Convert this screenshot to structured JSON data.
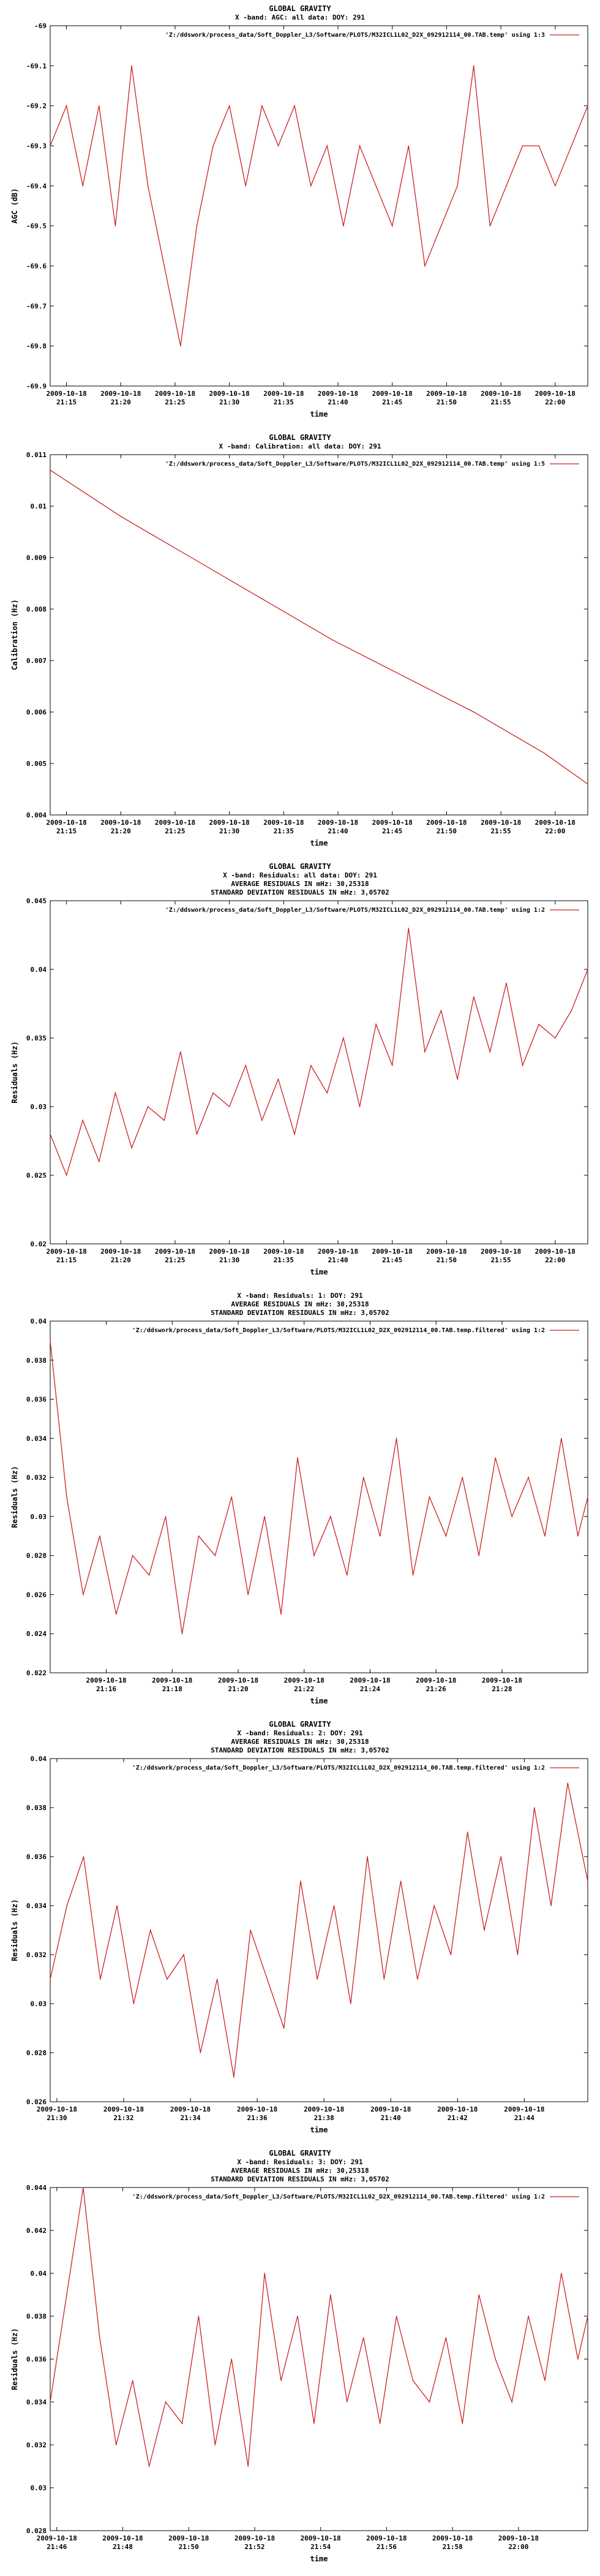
{
  "chart_data": [
    {
      "type": "line",
      "title": "GLOBAL GRAVITY",
      "subtitle_lines": [
        "X -band: AGC: all data: DOY: 291"
      ],
      "legend": "'Z:/ddswork/process_data/Soft_Doppler_L3/Software/PLOTS/M32ICL1L02_D2X_092912114_00.TAB.temp' using 1:3",
      "legend_position": "top-right",
      "xlabel": "time",
      "ylabel": "AGC (dB)",
      "ylim": [
        -69.9,
        -69.0
      ],
      "yticks": [
        "-69",
        "-69.1",
        "-69.2",
        "-69.3",
        "-69.4",
        "-69.5",
        "-69.6",
        "-69.7",
        "-69.8",
        "-69.9"
      ],
      "xticks": [
        "21:15",
        "21:20",
        "21:25",
        "21:30",
        "21:35",
        "21:40",
        "21:45",
        "21:50",
        "21:55",
        "22:00"
      ],
      "xtick_date": "2009-10-18",
      "xlim_minutes": [
        13.5,
        63
      ],
      "grid": false,
      "color": "#cc2222",
      "series": [
        {
          "x_minutes": [
            13.5,
            15,
            16.5,
            18,
            19.5,
            21,
            22.5,
            24,
            25.5,
            27,
            28.5,
            30,
            31.5,
            33,
            34.5,
            36,
            37.5,
            39,
            40.5,
            42,
            43.5,
            45,
            46.5,
            48,
            49.5,
            51,
            52.5,
            54,
            55.5,
            57,
            58.5,
            60,
            61.5,
            63
          ],
          "values": [
            -69.3,
            -69.2,
            -69.4,
            -69.2,
            -69.5,
            -69.1,
            -69.4,
            -69.6,
            -69.8,
            -69.5,
            -69.3,
            -69.2,
            -69.4,
            -69.2,
            -69.3,
            -69.2,
            -69.4,
            -69.3,
            -69.5,
            -69.3,
            -69.4,
            -69.5,
            -69.3,
            -69.6,
            -69.5,
            -69.4,
            -69.1,
            -69.5,
            -69.4,
            -69.3,
            -69.3,
            -69.4,
            -69.3,
            -69.2
          ]
        }
      ]
    },
    {
      "type": "line",
      "title": "GLOBAL GRAVITY",
      "subtitle_lines": [
        "X -band: Calibration: all data: DOY: 291"
      ],
      "legend": "'Z:/ddswork/process_data/Soft_Doppler_L3/Software/PLOTS/M32ICL1L02_D2X_092912114_00.TAB.temp' using 1:5",
      "legend_position": "top-right",
      "xlabel": "time",
      "ylabel": "Calibration (Hz)",
      "ylim": [
        0.004,
        0.011
      ],
      "yticks": [
        "0.011",
        "0.01",
        "0.009",
        "0.008",
        "0.007",
        "0.006",
        "0.005",
        "0.004"
      ],
      "xticks": [
        "21:15",
        "21:20",
        "21:25",
        "21:30",
        "21:35",
        "21:40",
        "21:45",
        "21:50",
        "21:55",
        "22:00"
      ],
      "xtick_date": "2009-10-18",
      "xlim_minutes": [
        13.5,
        63
      ],
      "grid": false,
      "color": "#cc2222",
      "series": [
        {
          "x_minutes": [
            13.5,
            20,
            26.5,
            33,
            39.5,
            46,
            52.5,
            59,
            63
          ],
          "values": [
            0.0107,
            0.0098,
            0.009,
            0.0082,
            0.0074,
            0.0067,
            0.006,
            0.0052,
            0.0046
          ]
        }
      ]
    },
    {
      "type": "line",
      "title": "GLOBAL GRAVITY",
      "subtitle_lines": [
        "X -band: Residuals: all data: DOY: 291",
        "AVERAGE RESIDUALS IN mHz: 30,25318",
        "STANDARD DEVIATION RESIDUALS IN mHz: 3,05702"
      ],
      "legend": "'Z:/ddswork/process_data/Soft_Doppler_L3/Software/PLOTS/M32ICL1L02_D2X_092912114_00.TAB.temp' using 1:2",
      "legend_position": "top-right",
      "xlabel": "time",
      "ylabel": "Residuals (Hz)",
      "ylim": [
        0.02,
        0.045
      ],
      "yticks": [
        "0.045",
        "0.04",
        "0.035",
        "0.03",
        "0.025",
        "0.02"
      ],
      "xticks": [
        "21:15",
        "21:20",
        "21:25",
        "21:30",
        "21:35",
        "21:40",
        "21:45",
        "21:50",
        "21:55",
        "22:00"
      ],
      "xtick_date": "2009-10-18",
      "xlim_minutes": [
        13.5,
        63
      ],
      "grid": false,
      "color": "#cc2222",
      "series": [
        {
          "x_minutes": [
            13.5,
            15,
            16.5,
            18,
            19.5,
            21,
            22.5,
            24,
            25.5,
            27,
            28.5,
            30,
            31.5,
            33,
            34.5,
            36,
            37.5,
            39,
            40.5,
            42,
            43.5,
            45,
            46.5,
            48,
            49.5,
            51,
            52.5,
            54,
            55.5,
            57,
            58.5,
            60,
            61.5,
            63
          ],
          "values": [
            0.028,
            0.025,
            0.029,
            0.026,
            0.031,
            0.027,
            0.03,
            0.029,
            0.034,
            0.028,
            0.031,
            0.03,
            0.033,
            0.029,
            0.032,
            0.028,
            0.033,
            0.031,
            0.035,
            0.03,
            0.036,
            0.033,
            0.043,
            0.034,
            0.037,
            0.032,
            0.038,
            0.034,
            0.039,
            0.033,
            0.036,
            0.035,
            0.037,
            0.04
          ]
        }
      ]
    },
    {
      "type": "line",
      "title": "",
      "subtitle_lines": [
        "X -band: Residuals: 1: DOY: 291",
        "AVERAGE RESIDUALS IN mHz: 30,25318",
        "STANDARD DEVIATION RESIDUALS IN mHz: 3,05702"
      ],
      "legend": "'Z:/ddswork/process_data/Soft_Doppler_L3/Software/PLOTS/M32ICL1L02_D2X_092912114_00.TAB.temp.filtered' using 1:2",
      "legend_position": "top-right",
      "xlabel": "time",
      "ylabel": "Residuals (Hz)",
      "ylim": [
        0.022,
        0.04
      ],
      "yticks": [
        "0.04",
        "0.038",
        "0.036",
        "0.034",
        "0.032",
        "0.03",
        "0.028",
        "0.026",
        "0.024",
        "0.022"
      ],
      "xticks": [
        "21:16",
        "21:18",
        "21:20",
        "21:22",
        "21:24",
        "21:26",
        "21:28"
      ],
      "xtick_date": "2009-10-18",
      "xlim_minutes": [
        14.3,
        30.6
      ],
      "grid": false,
      "color": "#cc2222",
      "series": [
        {
          "x_minutes": [
            14.3,
            14.8,
            15.3,
            15.8,
            16.3,
            16.8,
            17.3,
            17.8,
            18.3,
            18.8,
            19.3,
            19.8,
            20.3,
            20.8,
            21.3,
            21.8,
            22.3,
            22.8,
            23.3,
            23.8,
            24.3,
            24.8,
            25.3,
            25.8,
            26.3,
            26.8,
            27.3,
            27.8,
            28.3,
            28.8,
            29.3,
            29.8,
            30.3,
            30.6
          ],
          "values": [
            0.039,
            0.031,
            0.026,
            0.029,
            0.025,
            0.028,
            0.027,
            0.03,
            0.024,
            0.029,
            0.028,
            0.031,
            0.026,
            0.03,
            0.025,
            0.033,
            0.028,
            0.03,
            0.027,
            0.032,
            0.029,
            0.034,
            0.027,
            0.031,
            0.029,
            0.032,
            0.028,
            0.033,
            0.03,
            0.032,
            0.029,
            0.034,
            0.029,
            0.031
          ]
        }
      ]
    },
    {
      "type": "line",
      "title": "GLOBAL GRAVITY",
      "subtitle_lines": [
        "X -band: Residuals: 2: DOY: 291",
        "AVERAGE RESIDUALS IN mHz: 30,25318",
        "STANDARD DEVIATION RESIDUALS IN mHz: 3,05702"
      ],
      "legend": "'Z:/ddswork/process_data/Soft_Doppler_L3/Software/PLOTS/M32ICL1L02_D2X_092912114_00.TAB.temp.filtered' using 1:2",
      "legend_position": "top-right",
      "xlabel": "time",
      "ylabel": "Residuals (Hz)",
      "ylim": [
        0.026,
        0.04
      ],
      "yticks": [
        "0.04",
        "0.038",
        "0.036",
        "0.034",
        "0.032",
        "0.03",
        "0.028",
        "0.026"
      ],
      "xticks": [
        "21:30",
        "21:32",
        "21:34",
        "21:36",
        "21:38",
        "21:40",
        "21:42",
        "21:44"
      ],
      "xtick_date": "2009-10-18",
      "xlim_minutes": [
        29.8,
        45.9
      ],
      "grid": false,
      "color": "#cc2222",
      "series": [
        {
          "x_minutes": [
            29.8,
            30.3,
            30.8,
            31.3,
            31.8,
            32.3,
            32.8,
            33.3,
            33.8,
            34.3,
            34.8,
            35.3,
            35.8,
            36.3,
            36.8,
            37.3,
            37.8,
            38.3,
            38.8,
            39.3,
            39.8,
            40.3,
            40.8,
            41.3,
            41.8,
            42.3,
            42.8,
            43.3,
            43.8,
            44.3,
            44.8,
            45.3,
            45.9
          ],
          "values": [
            0.031,
            0.034,
            0.036,
            0.031,
            0.034,
            0.03,
            0.033,
            0.031,
            0.032,
            0.028,
            0.031,
            0.027,
            0.033,
            0.031,
            0.029,
            0.035,
            0.031,
            0.034,
            0.03,
            0.036,
            0.031,
            0.035,
            0.031,
            0.034,
            0.032,
            0.037,
            0.033,
            0.036,
            0.032,
            0.038,
            0.034,
            0.039,
            0.035
          ]
        }
      ]
    },
    {
      "type": "line",
      "title": "GLOBAL GRAVITY",
      "subtitle_lines": [
        "X -band: Residuals: 3: DOY: 291",
        "AVERAGE RESIDUALS IN mHz: 30,25318",
        "STANDARD DEVIATION RESIDUALS IN mHz: 3,05702"
      ],
      "legend": "'Z:/ddswork/process_data/Soft_Doppler_L3/Software/PLOTS/M32ICL1L02_D2X_092912114_00.TAB.temp.filtered' using 1:2",
      "legend_position": "top-right",
      "xlabel": "time",
      "ylabel": "Residuals (Hz)",
      "ylim": [
        0.028,
        0.044
      ],
      "yticks": [
        "0.044",
        "0.042",
        "0.04",
        "0.038",
        "0.036",
        "0.034",
        "0.032",
        "0.03",
        "0.028"
      ],
      "xticks": [
        "21:46",
        "21:48",
        "21:50",
        "21:52",
        "21:54",
        "21:56",
        "21:58",
        "22:00"
      ],
      "xtick_date": "2009-10-18",
      "xlim_minutes": [
        45.8,
        62.1
      ],
      "grid": false,
      "color": "#cc2222",
      "series": [
        {
          "x_minutes": [
            45.8,
            46.3,
            46.8,
            47.3,
            47.8,
            48.3,
            48.8,
            49.3,
            49.8,
            50.3,
            50.8,
            51.3,
            51.8,
            52.3,
            52.8,
            53.3,
            53.8,
            54.3,
            54.8,
            55.3,
            55.8,
            56.3,
            56.8,
            57.3,
            57.8,
            58.3,
            58.8,
            59.3,
            59.8,
            60.3,
            60.8,
            61.3,
            61.8,
            62.1
          ],
          "values": [
            0.034,
            0.039,
            0.044,
            0.037,
            0.032,
            0.035,
            0.031,
            0.034,
            0.033,
            0.038,
            0.032,
            0.036,
            0.031,
            0.04,
            0.035,
            0.038,
            0.033,
            0.039,
            0.034,
            0.037,
            0.033,
            0.038,
            0.035,
            0.034,
            0.037,
            0.033,
            0.039,
            0.036,
            0.034,
            0.038,
            0.035,
            0.04,
            0.036,
            0.038
          ]
        }
      ]
    }
  ]
}
